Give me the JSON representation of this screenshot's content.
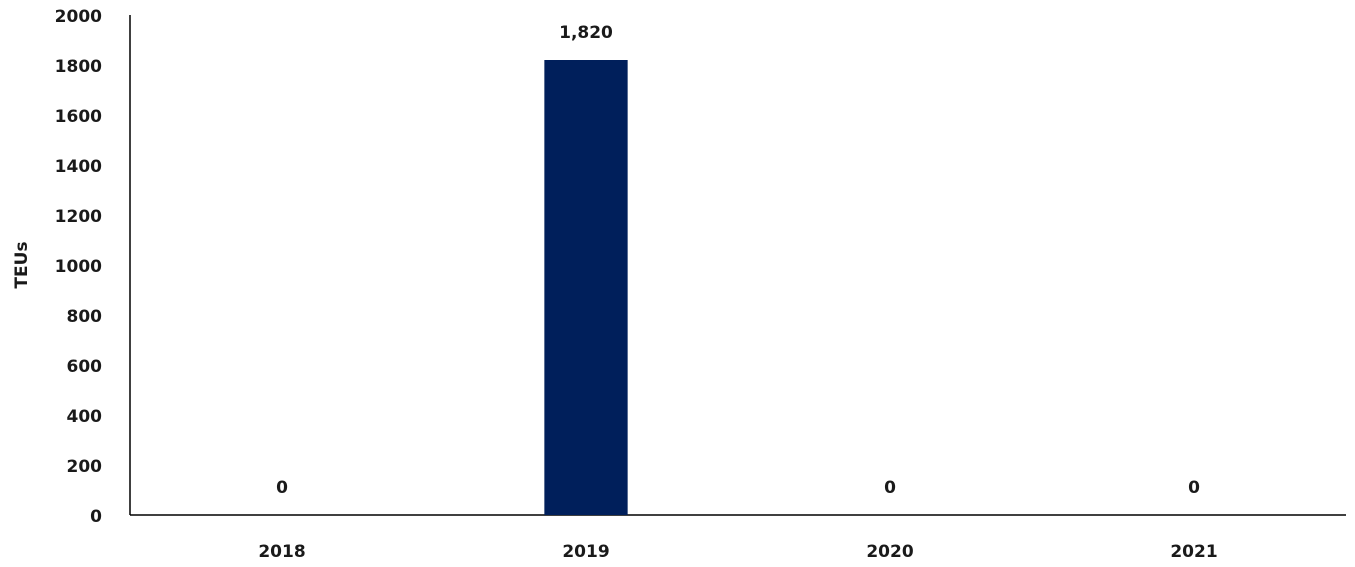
{
  "chart_data": {
    "type": "bar",
    "y_label": "TEUs",
    "categories": [
      "2018",
      "2019",
      "2020",
      "2021"
    ],
    "values": [
      0,
      1820,
      0,
      0
    ],
    "value_labels": [
      "0",
      "1,820",
      "0",
      "0"
    ],
    "color": "#001f5b",
    "ylim": [
      0,
      2000
    ],
    "yticks": [
      0,
      200,
      400,
      600,
      800,
      1000,
      1200,
      1400,
      1600,
      1800,
      2000
    ],
    "grid": false
  }
}
